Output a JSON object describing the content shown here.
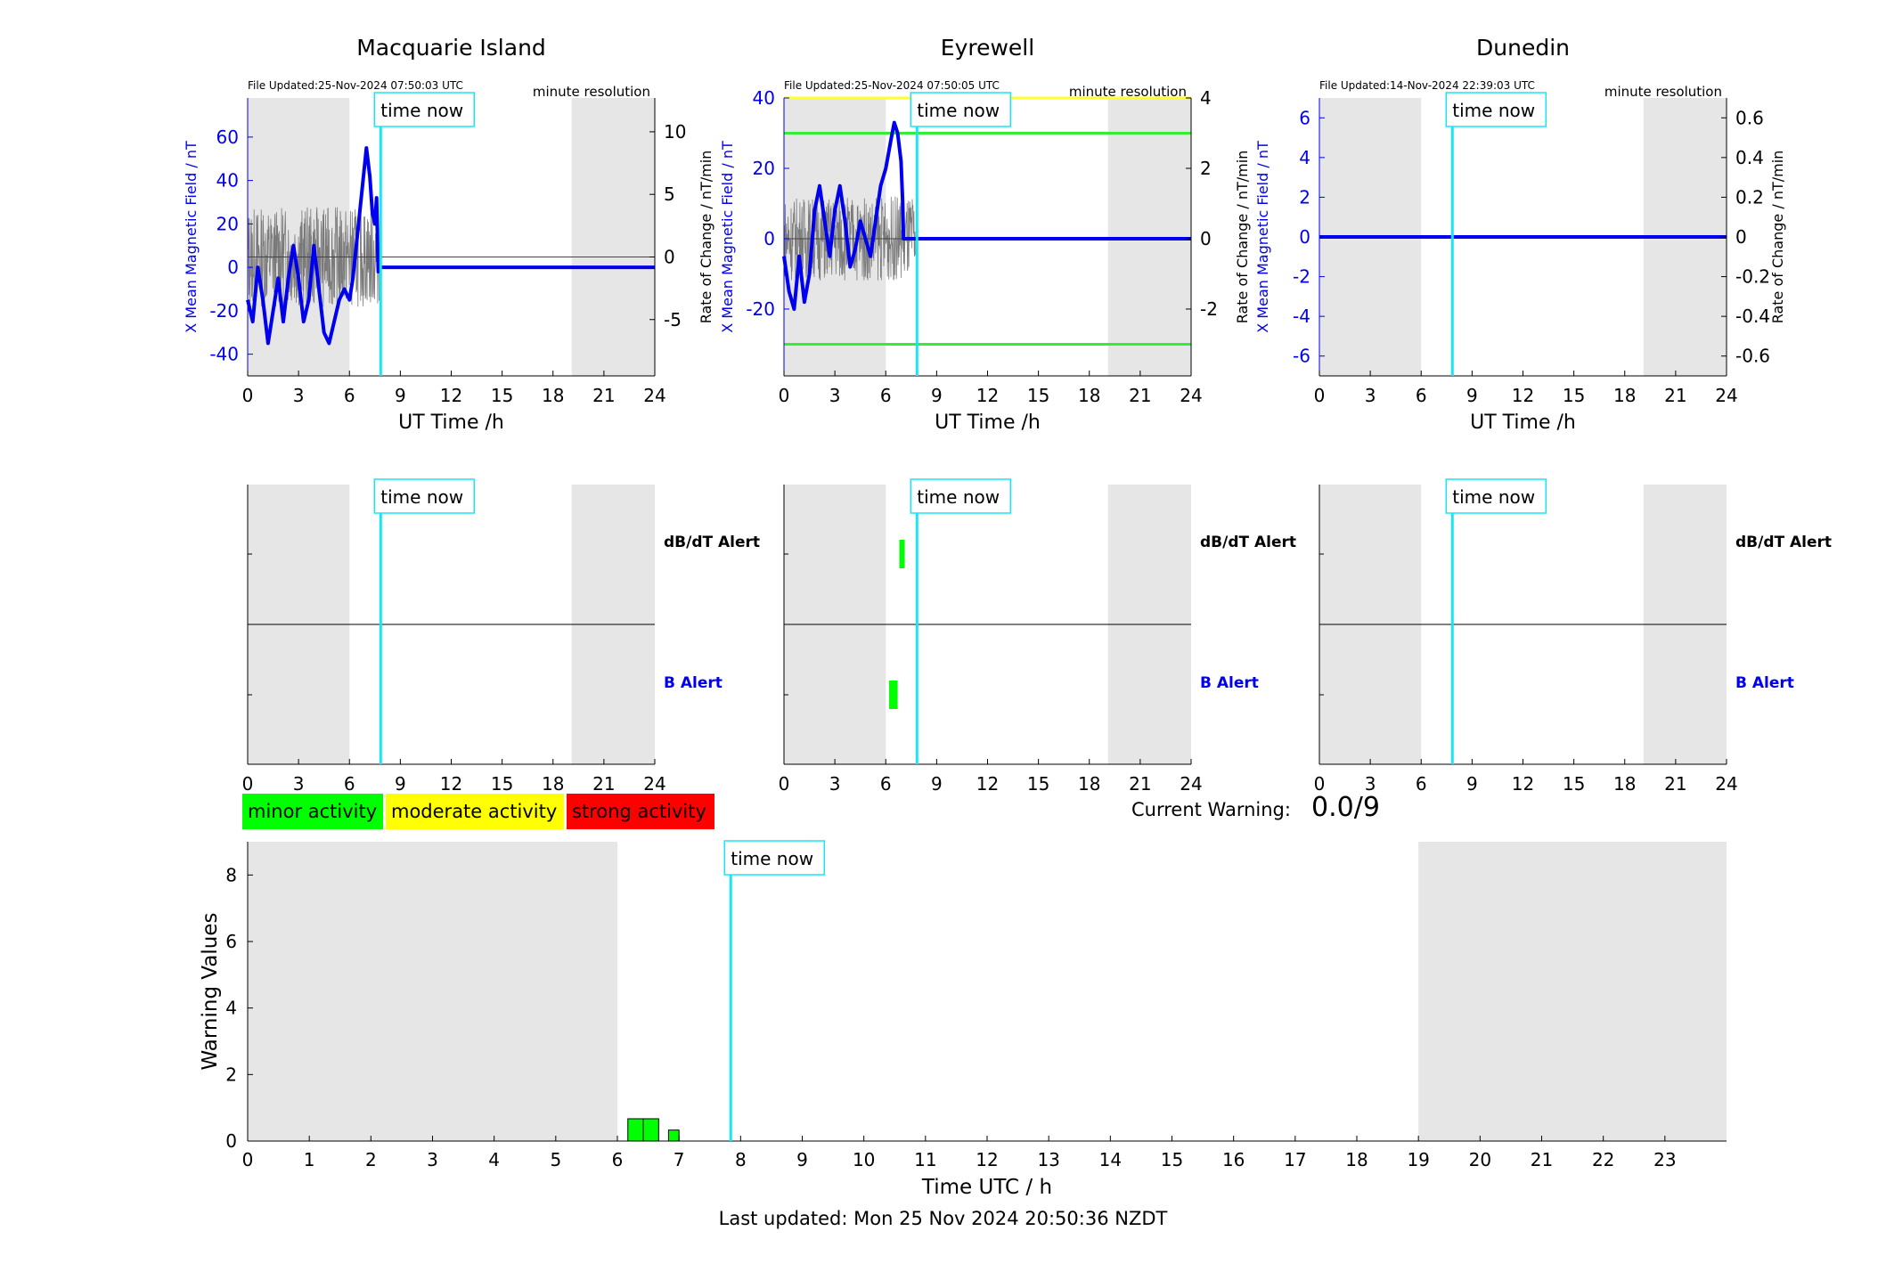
{
  "colors": {
    "x_field": "#0000ee",
    "rate": "#7a7a7a",
    "now_line": "#19e6f5",
    "night_shade": "#e6e6e6",
    "minor": "#00ff00",
    "moderate": "#ffff00",
    "strong": "#ff0000",
    "threshold_green": "#33ee33",
    "threshold_yellow": "#ffff33"
  },
  "time_now_label": "time now",
  "now_hour": 7.84,
  "stations": [
    {
      "name": "Macquarie Island",
      "file_updated": "File Updated:25-Nov-2024 07:50:03 UTC",
      "resolution": "minute resolution",
      "left_ylabel": "X Mean Magnetic Field / nT",
      "right_ylabel": "Rate of Change / nT/min",
      "xlabel": "UT Time /h",
      "ylim_left": [
        -50,
        78
      ],
      "ylim_right": [
        -9.5,
        12.7
      ],
      "left_ticks": [
        "-40",
        "-20",
        "0",
        "20",
        "40",
        "60"
      ],
      "right_ticks": [
        "-5",
        "0",
        "5",
        "10"
      ],
      "night": [
        [
          0,
          6
        ],
        [
          19.1,
          24
        ]
      ],
      "x_series": [
        [
          0,
          -15
        ],
        [
          0.3,
          -25
        ],
        [
          0.6,
          0
        ],
        [
          0.9,
          -15
        ],
        [
          1.2,
          -35
        ],
        [
          1.5,
          -20
        ],
        [
          1.8,
          -5
        ],
        [
          2.1,
          -25
        ],
        [
          2.4,
          -5
        ],
        [
          2.7,
          10
        ],
        [
          3.0,
          -5
        ],
        [
          3.3,
          -25
        ],
        [
          3.6,
          -15
        ],
        [
          3.9,
          10
        ],
        [
          4.2,
          -10
        ],
        [
          4.5,
          -30
        ],
        [
          4.8,
          -35
        ],
        [
          5.1,
          -25
        ],
        [
          5.4,
          -15
        ],
        [
          5.7,
          -10
        ],
        [
          6.0,
          -15
        ],
        [
          6.2,
          -5
        ],
        [
          6.4,
          10
        ],
        [
          6.6,
          25
        ],
        [
          6.8,
          40
        ],
        [
          7.0,
          55
        ],
        [
          7.2,
          42
        ],
        [
          7.35,
          25
        ],
        [
          7.5,
          20
        ],
        [
          7.6,
          32
        ],
        [
          7.7,
          -2
        ],
        [
          7.8,
          0
        ],
        [
          24,
          0
        ]
      ],
      "rate_range": [
        -4,
        4
      ],
      "thresholds": [],
      "alerts": {
        "dbdt": [],
        "b": []
      }
    },
    {
      "name": "Eyrewell",
      "file_updated": "File Updated:25-Nov-2024 07:50:05 UTC",
      "resolution": "minute resolution",
      "left_ylabel": "X Mean Magnetic Field / nT",
      "right_ylabel": "Rate of Change / nT/min",
      "xlabel": "UT Time /h",
      "ylim_left": [
        -39,
        40
      ],
      "ylim_right": [
        -3.9,
        4.0
      ],
      "left_ticks": [
        "-20",
        "0",
        "20",
        "40"
      ],
      "right_ticks": [
        "-2",
        "0",
        "2",
        "4"
      ],
      "night": [
        [
          0,
          6
        ],
        [
          19.1,
          24
        ]
      ],
      "x_series": [
        [
          0,
          -5
        ],
        [
          0.3,
          -15
        ],
        [
          0.6,
          -20
        ],
        [
          0.9,
          -5
        ],
        [
          1.2,
          -18
        ],
        [
          1.5,
          -10
        ],
        [
          1.8,
          8
        ],
        [
          2.1,
          15
        ],
        [
          2.4,
          5
        ],
        [
          2.7,
          -5
        ],
        [
          3.0,
          8
        ],
        [
          3.3,
          15
        ],
        [
          3.6,
          5
        ],
        [
          3.9,
          -8
        ],
        [
          4.2,
          -3
        ],
        [
          4.5,
          5
        ],
        [
          4.8,
          0
        ],
        [
          5.1,
          -5
        ],
        [
          5.4,
          5
        ],
        [
          5.7,
          15
        ],
        [
          6.0,
          20
        ],
        [
          6.3,
          28
        ],
        [
          6.5,
          33
        ],
        [
          6.7,
          30
        ],
        [
          6.9,
          22
        ],
        [
          7.0,
          10
        ],
        [
          7.05,
          0
        ],
        [
          24,
          0
        ]
      ],
      "rate_range": [
        -1.2,
        1.2
      ],
      "thresholds": [
        [
          3,
          "#33ee33"
        ],
        [
          -3,
          "#33ee33"
        ],
        [
          4,
          "#ffff33"
        ]
      ],
      "alerts": {
        "dbdt": [
          [
            6.8,
            7.0
          ]
        ],
        "b": [
          [
            6.2,
            6.7
          ]
        ]
      }
    },
    {
      "name": "Dunedin",
      "file_updated": "File Updated:14-Nov-2024 22:39:03 UTC",
      "resolution": "minute resolution",
      "left_ylabel": "X Mean Magnetic Field / nT",
      "right_ylabel": "Rate of Change / nT/min",
      "xlabel": "UT Time /h",
      "ylim_left": [
        -7,
        7
      ],
      "ylim_right": [
        -0.7,
        0.7
      ],
      "left_ticks": [
        "-6",
        "-4",
        "-2",
        "0",
        "2",
        "4",
        "6"
      ],
      "right_ticks": [
        "-0.6",
        "-0.4",
        "-0.2",
        "0",
        "0.2",
        "0.4",
        "0.6"
      ],
      "night": [
        [
          0,
          6
        ],
        [
          19.1,
          24
        ]
      ],
      "x_series": [
        [
          0,
          0
        ],
        [
          24,
          0
        ]
      ],
      "rate_range": [
        0,
        0
      ],
      "thresholds": [],
      "alerts": {
        "dbdt": [],
        "b": []
      }
    }
  ],
  "hour_ticks": [
    "0",
    "3",
    "6",
    "9",
    "12",
    "15",
    "18",
    "21",
    "24"
  ],
  "alert_labels": {
    "dbdt": "dB/dT Alert",
    "b": "B Alert"
  },
  "legend": {
    "minor": "minor activity",
    "moderate": "moderate activity",
    "strong": "strong activity"
  },
  "current_warning": {
    "label": "Current Warning:",
    "value": "0.0/9"
  },
  "warning_chart": {
    "ylabel": "Warning Values",
    "xlabel": "Time UTC / h",
    "ylim": [
      0,
      9
    ],
    "xlim": [
      0,
      24
    ],
    "y_ticks": [
      "0",
      "2",
      "4",
      "6",
      "8"
    ],
    "x_ticks": [
      "0",
      "1",
      "2",
      "3",
      "4",
      "5",
      "6",
      "7",
      "8",
      "9",
      "10",
      "11",
      "12",
      "13",
      "14",
      "15",
      "16",
      "17",
      "18",
      "19",
      "20",
      "21",
      "22",
      "23"
    ],
    "night": [
      [
        0,
        6
      ],
      [
        19,
        24
      ]
    ]
  },
  "chart_data": {
    "type": "bar",
    "title": "",
    "xlabel": "Time UTC / h",
    "ylabel": "Warning Values",
    "ylim": [
      0,
      9
    ],
    "bars": [
      {
        "x_start": 6.17,
        "x_end": 6.42,
        "value": 0.67
      },
      {
        "x_start": 6.42,
        "x_end": 6.67,
        "value": 0.67
      },
      {
        "x_start": 6.83,
        "x_end": 7.0,
        "value": 0.33
      }
    ]
  },
  "footer": "Last updated: Mon 25 Nov 2024 20:50:36 NZDT"
}
